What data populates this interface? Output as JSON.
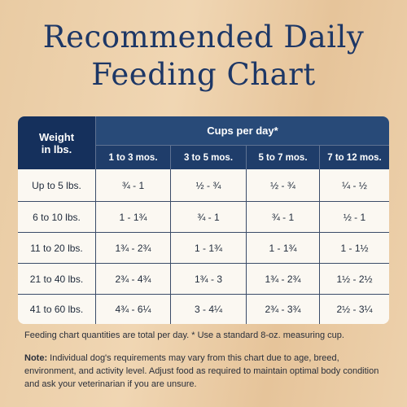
{
  "title": [
    "Recommended Daily",
    "Feeding Chart"
  ],
  "table": {
    "corner_header": [
      "Weight",
      "in lbs."
    ],
    "group_header": "Cups per day*",
    "columns": [
      "1 to 3 mos.",
      "3 to 5 mos.",
      "5 to 7 mos.",
      "7 to 12 mos."
    ],
    "rows": [
      [
        "Up to 5 lbs.",
        "¾ - 1",
        "½ - ¾",
        "½ - ¾",
        "¼ - ½"
      ],
      [
        "6 to 10 lbs.",
        "1 - 1¾",
        "¾ - 1",
        "¾ - 1",
        "½ - 1"
      ],
      [
        "11 to 20 lbs.",
        "1¾ - 2¾",
        "1 - 1¾",
        "1 - 1¾",
        "1 - 1½"
      ],
      [
        "21 to 40 lbs.",
        "2¾ - 4¾",
        "1¾ - 3",
        "1¾ - 2¾",
        "1½ - 2½"
      ],
      [
        "41 to 60 lbs.",
        "4¾ - 6¼",
        "3 - 4¼",
        "2¾ - 3¾",
        "2½ - 3¼"
      ]
    ]
  },
  "footnote": "Feeding chart quantities are total per day. * Use a standard 8-oz. measuring cup.",
  "note": {
    "label": "Note:",
    "text": "Individual dog's requirements may vary from this chart due to age, breed, environment, and activity level. Adjust food as required to maintain optimal body condition and ask your veterinarian if you are unsure."
  }
}
